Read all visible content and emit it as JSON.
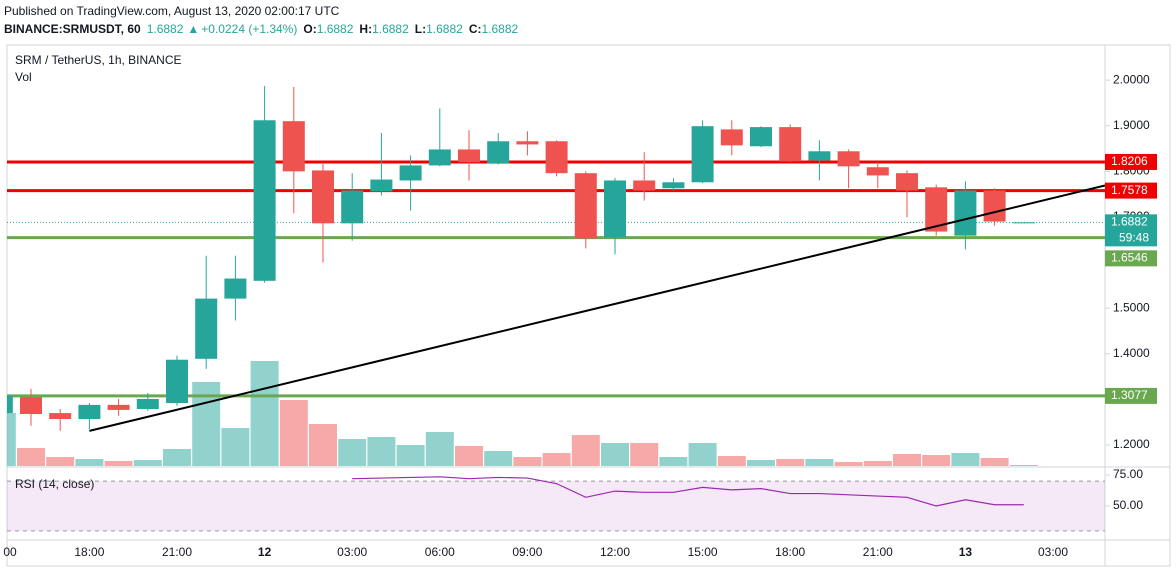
{
  "header": {
    "published": "Published on TradingView.com, August 13, 2020 02:00:17 UTC",
    "symbol": "BINANCE:SRMUSDT, 60",
    "last": "1.6882",
    "change": "+0.0224 (+1.34%)",
    "ohlc": [
      {
        "label": "O:",
        "value": "1.6882"
      },
      {
        "label": "H:",
        "value": "1.6882"
      },
      {
        "label": "L:",
        "value": "1.6882"
      },
      {
        "label": "C:",
        "value": "1.6882"
      }
    ]
  },
  "chart_data": {
    "type": "candlestick",
    "title": "SRM / TetherUS, 1h, BINANCE",
    "volume_label": "Vol",
    "categories": [
      "00",
      null,
      null,
      "18:00",
      null,
      null,
      "21:00",
      null,
      null,
      "12",
      null,
      null,
      "03:00",
      null,
      null,
      "06:00",
      null,
      null,
      "09:00",
      null,
      null,
      "12:00",
      null,
      null,
      "15:00",
      null,
      null,
      "18:00",
      null,
      null,
      "21:00",
      null,
      null,
      "13",
      null,
      null,
      "03:00"
    ],
    "open": [
      1.27,
      1.305,
      1.27,
      1.257,
      1.288,
      1.279,
      1.292,
      1.389,
      1.521,
      1.56,
      1.91,
      1.802,
      1.686,
      1.756,
      1.78,
      1.813,
      1.848,
      1.818,
      1.866,
      1.866,
      1.796,
      1.655,
      1.78,
      1.763,
      1.776,
      1.892,
      1.855,
      1.897,
      1.824,
      1.844,
      1.809,
      1.796,
      1.765,
      1.659,
      1.758,
      1.6882,
      null
    ],
    "high": [
      1.319,
      1.323,
      1.279,
      1.292,
      1.301,
      1.314,
      1.396,
      1.615,
      1.615,
      1.987,
      1.985,
      1.82,
      1.796,
      1.884,
      1.835,
      1.938,
      1.89,
      1.884,
      1.888,
      1.868,
      1.8,
      1.785,
      1.842,
      1.785,
      1.912,
      1.912,
      1.899,
      1.903,
      1.868,
      1.848,
      1.82,
      1.802,
      1.771,
      1.778,
      1.763,
      1.6882,
      null
    ],
    "low": [
      1.264,
      1.242,
      1.231,
      1.235,
      1.264,
      1.275,
      1.286,
      1.367,
      1.473,
      1.556,
      1.708,
      1.6,
      1.648,
      1.747,
      1.714,
      1.811,
      1.78,
      1.815,
      1.835,
      1.789,
      1.631,
      1.618,
      1.736,
      1.758,
      1.774,
      1.835,
      1.853,
      1.82,
      1.78,
      1.763,
      1.763,
      1.699,
      1.659,
      1.629,
      1.681,
      1.6882,
      null
    ],
    "close": [
      1.308,
      1.268,
      1.257,
      1.288,
      1.277,
      1.301,
      1.387,
      1.521,
      1.565,
      1.912,
      1.8,
      1.686,
      1.758,
      1.782,
      1.813,
      1.848,
      1.82,
      1.866,
      1.859,
      1.796,
      1.653,
      1.78,
      1.758,
      1.776,
      1.899,
      1.857,
      1.897,
      1.822,
      1.844,
      1.811,
      1.791,
      1.758,
      1.668,
      1.758,
      1.69,
      1.6882,
      null
    ],
    "volume": [
      53,
      18,
      9,
      7,
      5,
      6,
      17,
      84,
      38,
      105,
      66,
      42,
      27,
      29,
      21,
      34,
      20,
      15,
      9,
      13,
      31,
      23,
      23,
      9,
      23,
      10,
      6,
      7,
      7,
      4,
      5,
      12,
      11,
      13,
      8,
      1,
      null
    ],
    "up_color": "#26a69a",
    "down_color": "#ef5350",
    "ylim": [
      1.154,
      2.077
    ],
    "yticks": [
      {
        "value": 1.2,
        "label": "1.2000"
      },
      {
        "value": 1.3,
        "label": "1.3000"
      },
      {
        "value": 1.4,
        "label": "1.4000"
      },
      {
        "value": 1.5,
        "label": "1.5000"
      },
      {
        "value": 1.6,
        "label": "1.6000"
      },
      {
        "value": 1.7,
        "label": "1.7000"
      },
      {
        "value": 1.8,
        "label": "1.8000"
      },
      {
        "value": 1.9,
        "label": "1.9000"
      },
      {
        "value": 2.0,
        "label": "2.0000"
      }
    ],
    "levels": [
      {
        "value": 1.8206,
        "color": "#f00000"
      },
      {
        "value": 1.7578,
        "color": "#f00000"
      },
      {
        "value": 1.6546,
        "color": "#6aa84f"
      },
      {
        "value": 1.3077,
        "color": "#6aa84f"
      }
    ],
    "last_price": 1.6882,
    "countdown": "59:48",
    "trendline": {
      "x": [
        3,
        37.78
      ],
      "y": [
        1.231,
        1.769
      ]
    },
    "rsi": {
      "label": "RSI (14, close)",
      "color": "#9c27b0",
      "values": [
        null,
        null,
        null,
        null,
        null,
        null,
        null,
        null,
        null,
        null,
        null,
        null,
        72,
        72.5,
        73,
        73.5,
        72,
        73,
        72.5,
        68,
        57,
        62,
        61,
        61,
        65,
        63,
        64,
        60,
        60,
        59,
        58,
        57,
        50,
        55,
        51,
        51,
        null
      ],
      "ylim": [
        22.6,
        80.6
      ],
      "yticks": [
        {
          "value": 75,
          "label": "75.00"
        },
        {
          "value": 50,
          "label": "50.00"
        }
      ],
      "band": [
        30,
        70
      ]
    }
  }
}
